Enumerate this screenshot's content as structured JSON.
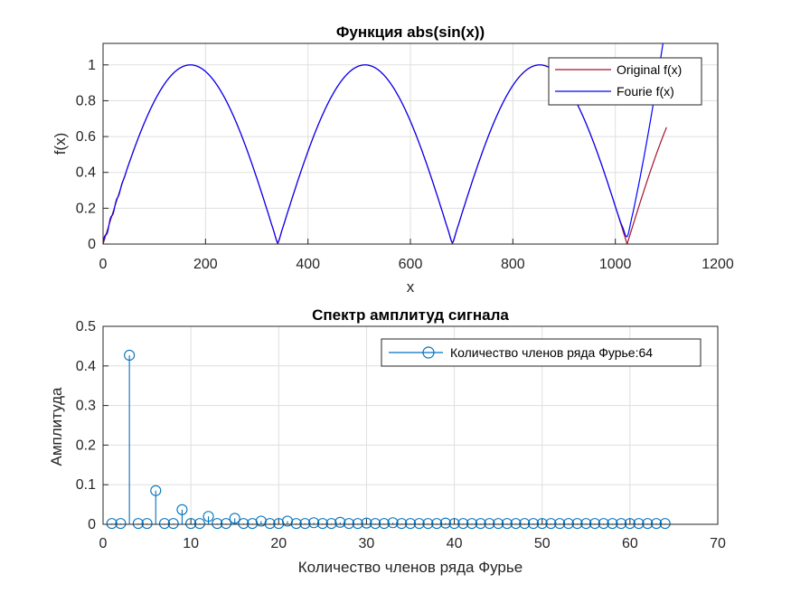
{
  "chart_data": [
    {
      "type": "line",
      "title": "Функция abs(sin(x))",
      "xlabel": "x",
      "ylabel": "f(x)",
      "xlim": [
        0,
        1200
      ],
      "ylim": [
        0,
        1.12
      ],
      "xticks": [
        "0",
        "200",
        "400",
        "600",
        "800",
        "1000",
        "1200"
      ],
      "yticks": [
        "0",
        "0.2",
        "0.4",
        "0.6",
        "0.8",
        "1"
      ],
      "grid": true,
      "legend_position": "top-right",
      "period": 341,
      "x_end": 1100,
      "series": [
        {
          "name": "Original f(x)",
          "color": "#a2142f",
          "values": "abs(sin(pi*x/341))"
        },
        {
          "name": "Fourie f(x)",
          "color": "#0000ff",
          "values": "Fourier approximation, 64 terms"
        }
      ]
    },
    {
      "type": "stem",
      "title": "Спектр амплитуд сигнала",
      "xlabel": "Количество членов ряда Фурье",
      "ylabel": "Амплитуда",
      "xlim": [
        0,
        70
      ],
      "ylim": [
        0,
        0.5
      ],
      "xticks": [
        "0",
        "10",
        "20",
        "30",
        "40",
        "50",
        "60",
        "70"
      ],
      "yticks": [
        "0",
        "0.1",
        "0.2",
        "0.3",
        "0.4",
        "0.5"
      ],
      "grid": true,
      "legend_position": "top-right",
      "color": "#0072bd",
      "series": [
        {
          "name": "Количество членов ряда Фурье:64",
          "x": [
            1,
            2,
            3,
            4,
            5,
            6,
            7,
            8,
            9,
            10,
            11,
            12,
            13,
            14,
            15,
            16,
            17,
            18,
            19,
            20,
            21,
            22,
            23,
            24,
            25,
            26,
            27,
            28,
            29,
            30,
            31,
            32,
            33,
            34,
            35,
            36,
            37,
            38,
            39,
            40,
            41,
            42,
            43,
            44,
            45,
            46,
            47,
            48,
            49,
            50,
            51,
            52,
            53,
            54,
            55,
            56,
            57,
            58,
            59,
            60,
            61,
            62,
            63,
            64
          ],
          "values": [
            0.002,
            0.002,
            0.427,
            0.002,
            0.002,
            0.085,
            0.002,
            0.002,
            0.037,
            0.002,
            0.002,
            0.02,
            0.002,
            0.002,
            0.015,
            0.002,
            0.002,
            0.008,
            0.002,
            0.002,
            0.008,
            0.002,
            0.002,
            0.004,
            0.002,
            0.002,
            0.005,
            0.002,
            0.002,
            0.003,
            0.002,
            0.002,
            0.004,
            0.002,
            0.002,
            0.002,
            0.002,
            0.002,
            0.003,
            0.002,
            0.002,
            0.002,
            0.002,
            0.002,
            0.002,
            0.002,
            0.002,
            0.002,
            0.002,
            0.002,
            0.002,
            0.002,
            0.002,
            0.002,
            0.002,
            0.002,
            0.002,
            0.002,
            0.002,
            0.002,
            0.002,
            0.002,
            0.002,
            0.002
          ]
        }
      ]
    }
  ]
}
